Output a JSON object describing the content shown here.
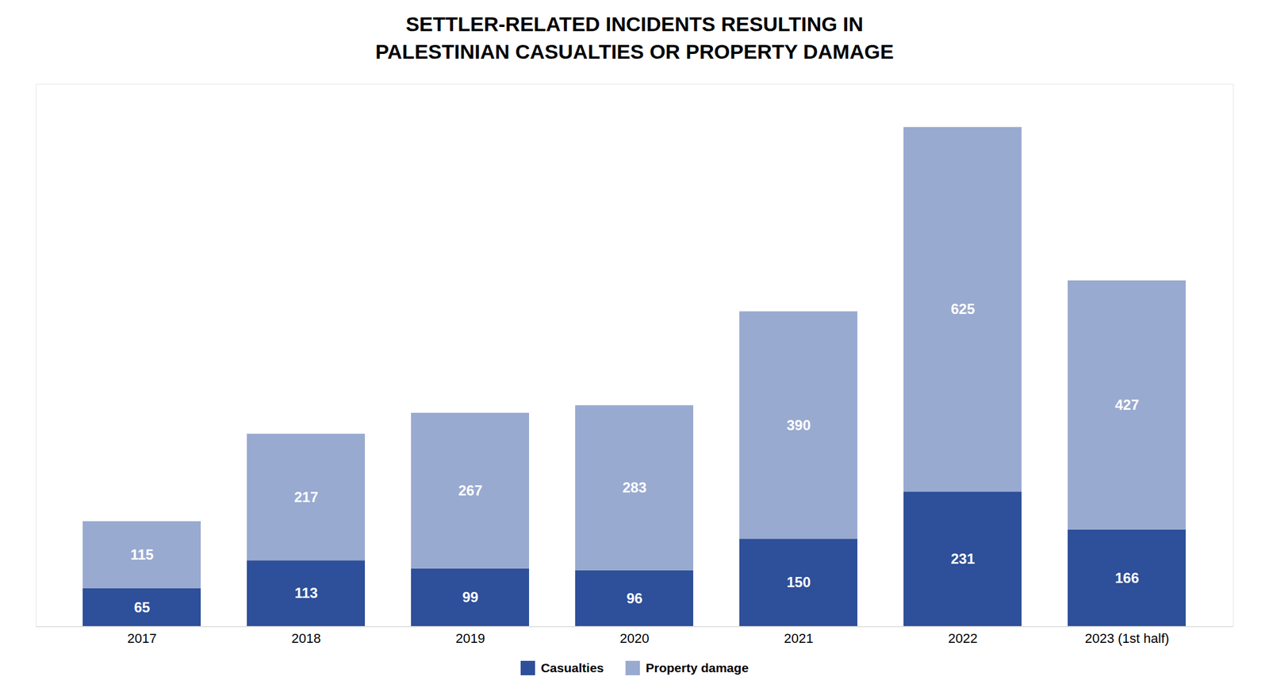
{
  "chart_data": {
    "type": "bar",
    "title": "SETTLER-RELATED INCIDENTS RESULTING IN\nPALESTINIAN CASUALTIES OR PROPERTY DAMAGE",
    "categories": [
      "2017",
      "2018",
      "2019",
      "2020",
      "2021",
      "2022",
      "2023 (1st half)"
    ],
    "series": [
      {
        "name": "Casualties",
        "color": "#2e4f99",
        "values": [
          65,
          113,
          99,
          96,
          150,
          231,
          166
        ]
      },
      {
        "name": "Property damage",
        "color": "#99aad0",
        "values": [
          115,
          217,
          267,
          283,
          390,
          625,
          427
        ]
      }
    ],
    "stacked": true,
    "data_labels": true,
    "ylim": [
      0,
      930
    ],
    "tick_labels": "x",
    "grid": false,
    "legend": "bottom"
  }
}
